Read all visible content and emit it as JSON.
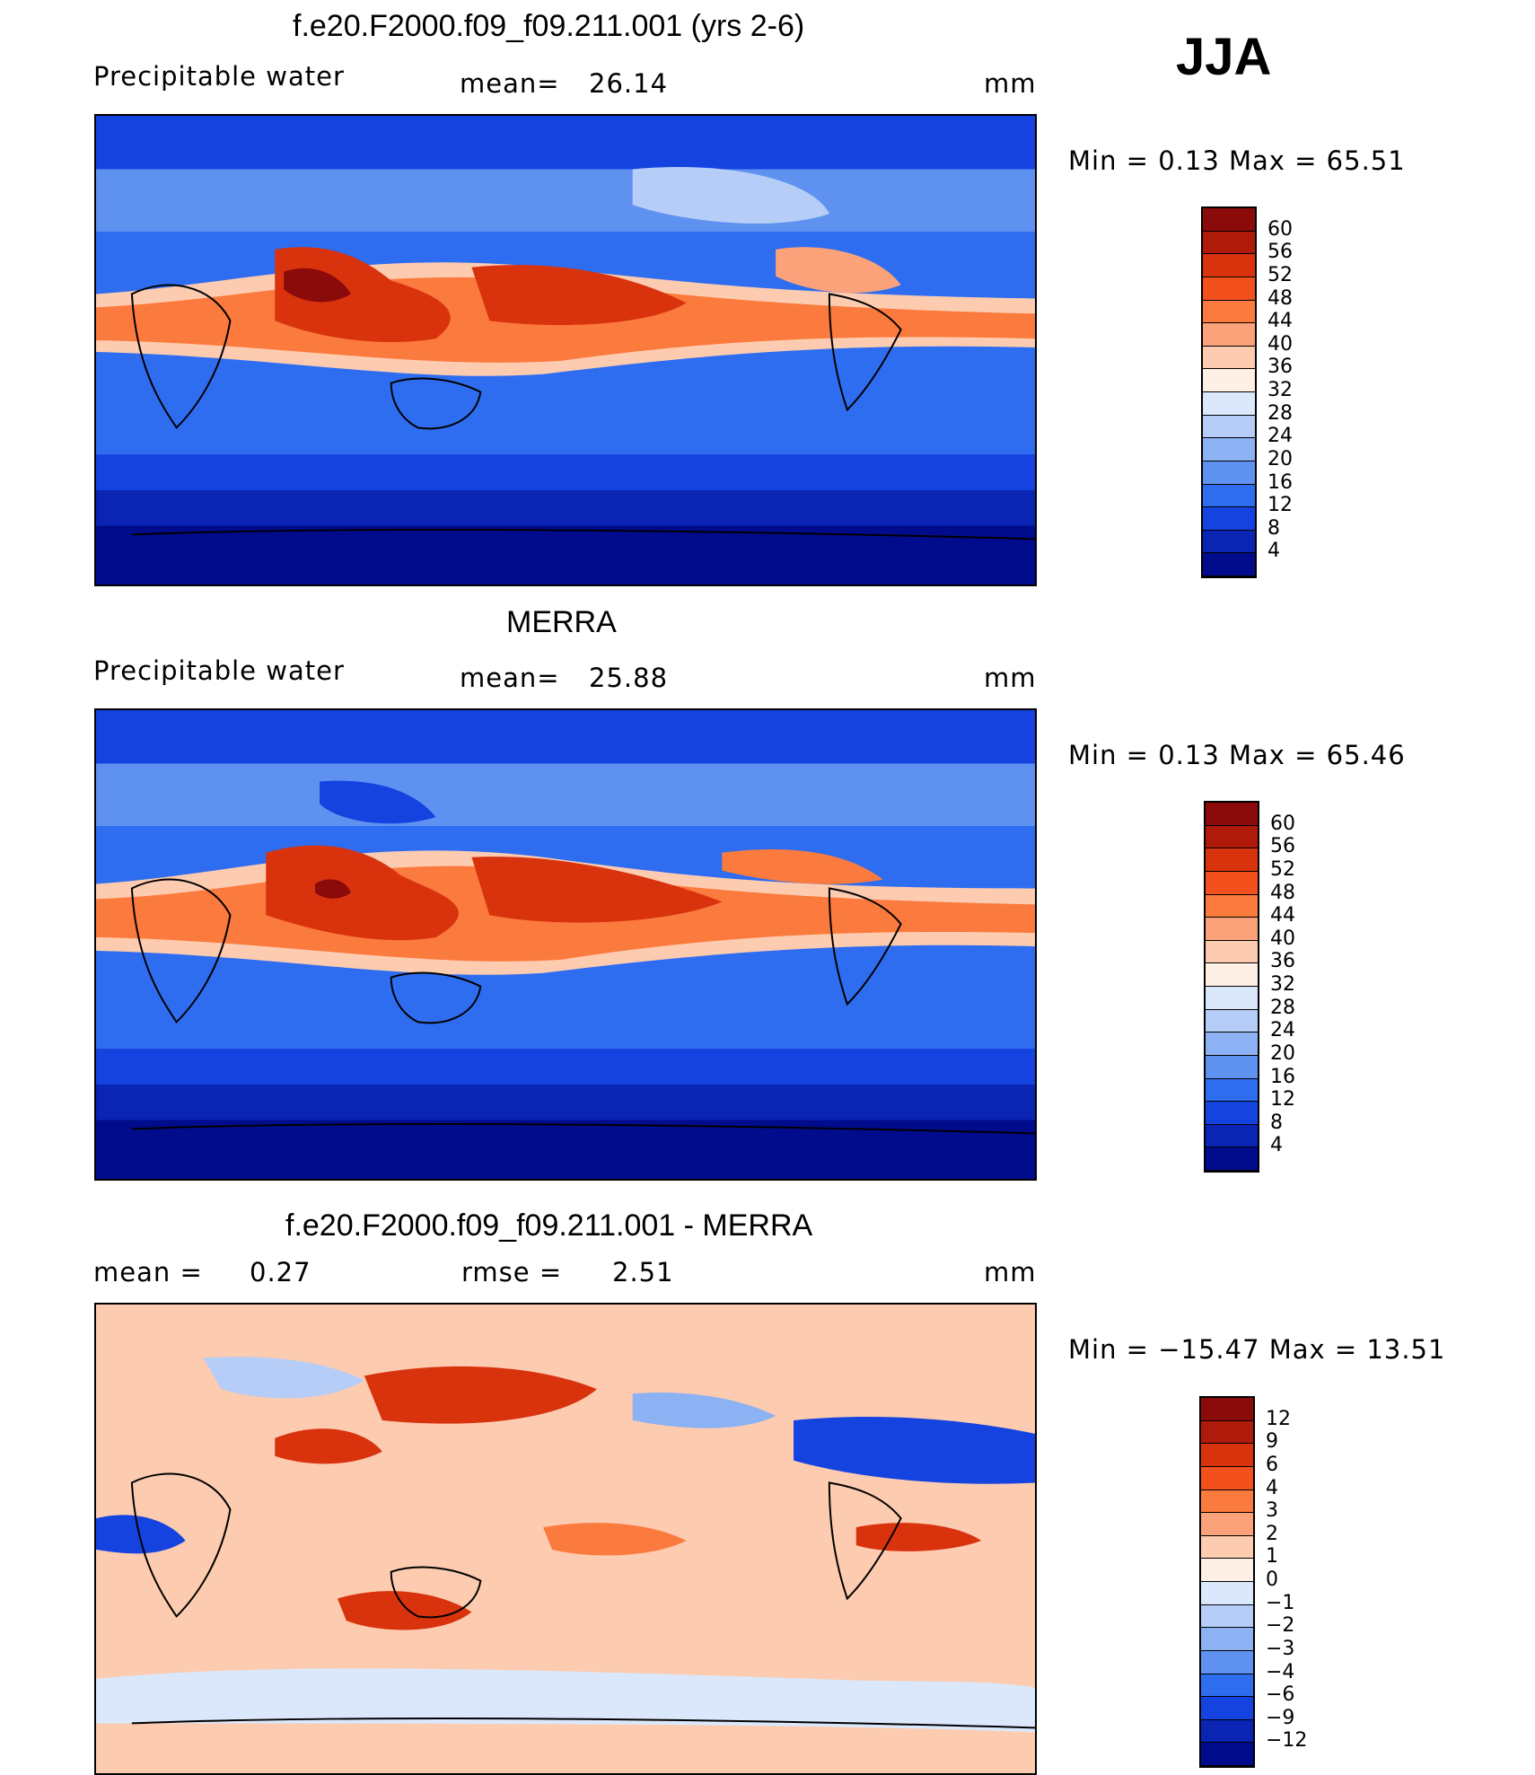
{
  "season": "JJA",
  "panels": [
    {
      "title": "f.e20.F2000.f09_f09.211.001 (yrs 2-6)",
      "left_label": "Precipitable water",
      "stat_label": "mean=",
      "stat_value": "26.14",
      "stat2_label": "",
      "stat2_value": "",
      "units": "mm",
      "range_text": "Min =    0.13  Max =    65.51",
      "colorbar_labels": [
        "60",
        "56",
        "52",
        "48",
        "44",
        "40",
        "36",
        "32",
        "28",
        "24",
        "20",
        "16",
        "12",
        "8",
        "4"
      ],
      "colors": [
        "#8b0a0a",
        "#b01a0a",
        "#d9330e",
        "#f2511d",
        "#fb7a3d",
        "#fca27a",
        "#fdcbb0",
        "#fef0e4",
        "#dbe8fb",
        "#b5cdf7",
        "#8cb2f4",
        "#5f92f0",
        "#2f6df0",
        "#1543e0",
        "#0a24b4",
        "#000c8c"
      ]
    },
    {
      "title": "MERRA",
      "left_label": "Precipitable water",
      "stat_label": "mean=",
      "stat_value": "25.88",
      "stat2_label": "",
      "stat2_value": "",
      "units": "mm",
      "range_text": "Min =    0.13  Max =    65.46",
      "colorbar_labels": [
        "60",
        "56",
        "52",
        "48",
        "44",
        "40",
        "36",
        "32",
        "28",
        "24",
        "20",
        "16",
        "12",
        "8",
        "4"
      ],
      "colors": [
        "#8b0a0a",
        "#b01a0a",
        "#d9330e",
        "#f2511d",
        "#fb7a3d",
        "#fca27a",
        "#fdcbb0",
        "#fef0e4",
        "#dbe8fb",
        "#b5cdf7",
        "#8cb2f4",
        "#5f92f0",
        "#2f6df0",
        "#1543e0",
        "#0a24b4",
        "#000c8c"
      ]
    },
    {
      "title": "f.e20.F2000.f09_f09.211.001 - MERRA",
      "left_label": "mean =",
      "stat_label": "",
      "stat_value": "0.27",
      "stat2_label": "rmse =",
      "stat2_value": "2.51",
      "units": "mm",
      "range_text": "Min  = −15.47  Max  =    13.51",
      "colorbar_labels": [
        "12",
        "9",
        "6",
        "4",
        "3",
        "2",
        "1",
        "0",
        "−1",
        "−2",
        "−3",
        "−4",
        "−6",
        "−9",
        "−12"
      ],
      "colors": [
        "#8b0a0a",
        "#b01a0a",
        "#d9330e",
        "#f2511d",
        "#fb7a3d",
        "#fca27a",
        "#fdcbb0",
        "#fef0e4",
        "#dbe8fb",
        "#b5cdf7",
        "#8cb2f4",
        "#5f92f0",
        "#2f6df0",
        "#1543e0",
        "#0a24b4",
        "#000c8c"
      ]
    }
  ]
}
